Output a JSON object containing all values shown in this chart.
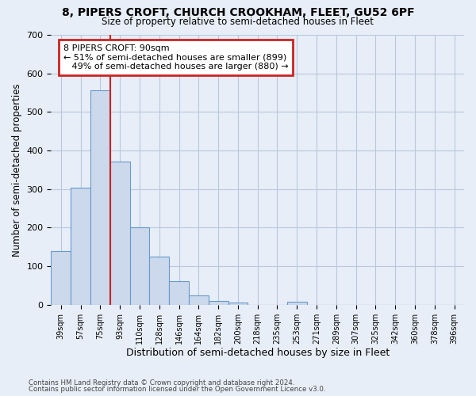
{
  "title1": "8, PIPERS CROFT, CHURCH CROOKHAM, FLEET, GU52 6PF",
  "title2": "Size of property relative to semi-detached houses in Fleet",
  "xlabel": "Distribution of semi-detached houses by size in Fleet",
  "ylabel": "Number of semi-detached properties",
  "footnote1": "Contains HM Land Registry data © Crown copyright and database right 2024.",
  "footnote2": "Contains public sector information licensed under the Open Government Licence v3.0.",
  "categories": [
    "39sqm",
    "57sqm",
    "75sqm",
    "93sqm",
    "110sqm",
    "128sqm",
    "146sqm",
    "164sqm",
    "182sqm",
    "200sqm",
    "218sqm",
    "235sqm",
    "253sqm",
    "271sqm",
    "289sqm",
    "307sqm",
    "325sqm",
    "342sqm",
    "360sqm",
    "378sqm",
    "396sqm"
  ],
  "values": [
    140,
    303,
    557,
    372,
    200,
    125,
    62,
    25,
    10,
    5,
    0,
    0,
    7,
    0,
    0,
    0,
    0,
    0,
    0,
    0,
    0
  ],
  "bar_color": "#ccd9ec",
  "bar_edge_color": "#6699cc",
  "bar_linewidth": 0.8,
  "grid_color": "#b8c8dc",
  "bg_color": "#e8eef8",
  "vline_color": "#cc2222",
  "vline_x_idx": 3,
  "annotation_text": "8 PIPERS CROFT: 90sqm\n← 51% of semi-detached houses are smaller (899)\n   49% of semi-detached houses are larger (880) →",
  "annotation_box_color": "#ffffff",
  "annotation_box_edge": "#cc2222",
  "ylim": [
    0,
    700
  ],
  "yticks": [
    0,
    100,
    200,
    300,
    400,
    500,
    600,
    700
  ]
}
